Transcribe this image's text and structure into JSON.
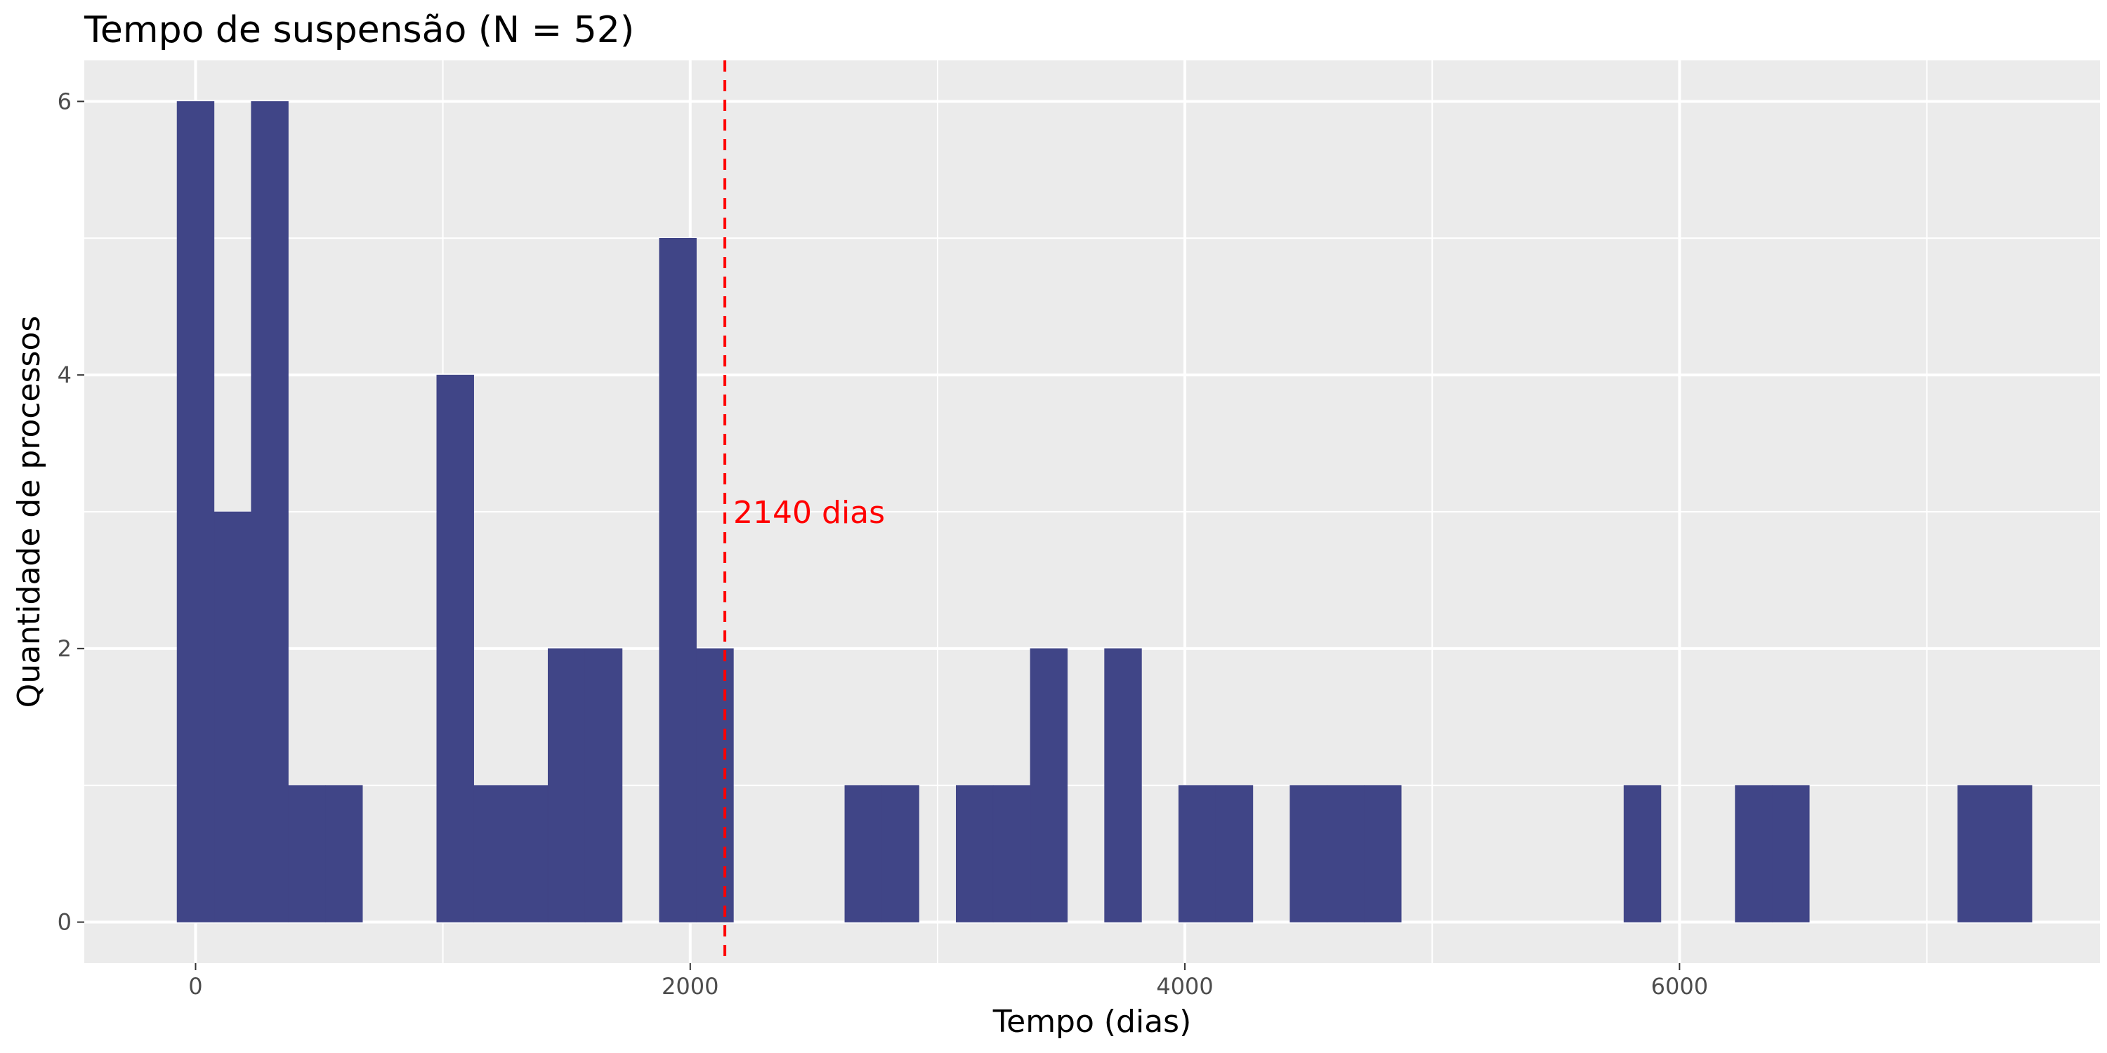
{
  "chart_data": {
    "type": "bar",
    "title": "Tempo de suspensão (N = 52)",
    "xlabel": "Tempo (dias)",
    "ylabel": "Quantidade de processos",
    "xlim": [
      -450,
      7700
    ],
    "ylim": [
      -0.3,
      6.3
    ],
    "x_ticks": [
      0,
      2000,
      4000,
      6000
    ],
    "y_ticks": [
      0,
      2,
      4,
      6
    ],
    "grid": true,
    "bin_width": 150,
    "bins": [
      {
        "x": 0,
        "count": 6
      },
      {
        "x": 150,
        "count": 3
      },
      {
        "x": 300,
        "count": 6
      },
      {
        "x": 450,
        "count": 1
      },
      {
        "x": 600,
        "count": 1
      },
      {
        "x": 1050,
        "count": 4
      },
      {
        "x": 1200,
        "count": 1
      },
      {
        "x": 1350,
        "count": 1
      },
      {
        "x": 1500,
        "count": 2
      },
      {
        "x": 1650,
        "count": 2
      },
      {
        "x": 1950,
        "count": 5
      },
      {
        "x": 2100,
        "count": 2
      },
      {
        "x": 2700,
        "count": 1
      },
      {
        "x": 2850,
        "count": 1
      },
      {
        "x": 3150,
        "count": 1
      },
      {
        "x": 3300,
        "count": 1
      },
      {
        "x": 3450,
        "count": 2
      },
      {
        "x": 3750,
        "count": 2
      },
      {
        "x": 4050,
        "count": 1
      },
      {
        "x": 4200,
        "count": 1
      },
      {
        "x": 4500,
        "count": 1
      },
      {
        "x": 4650,
        "count": 1
      },
      {
        "x": 4800,
        "count": 1
      },
      {
        "x": 5850,
        "count": 1
      },
      {
        "x": 6300,
        "count": 1
      },
      {
        "x": 6450,
        "count": 1
      },
      {
        "x": 7200,
        "count": 1
      },
      {
        "x": 7350,
        "count": 1
      }
    ],
    "bar_color": "#404587",
    "reference_line": {
      "x": 2140,
      "label": "2140 dias",
      "color": "#ff0000",
      "style": "dashed"
    },
    "panel_background": "#ebebeb",
    "grid_color": "#ffffff"
  }
}
